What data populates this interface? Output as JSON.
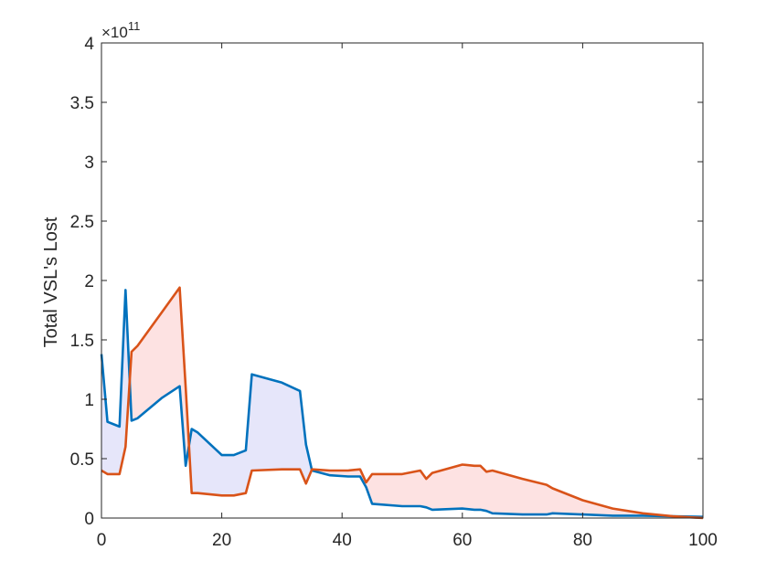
{
  "chart_data": {
    "type": "line",
    "title": "",
    "xlabel": "",
    "ylabel": "Total VSL's Lost",
    "y_exponent_base": "×10",
    "y_exponent_power": "11",
    "xlim": [
      0,
      100
    ],
    "ylim": [
      0,
      4
    ],
    "xticks": [
      0,
      20,
      40,
      60,
      80,
      100
    ],
    "xtick_labels": [
      "0",
      "20",
      "40",
      "60",
      "80",
      "100"
    ],
    "yticks": [
      0,
      0.5,
      1,
      1.5,
      2,
      2.5,
      3,
      3.5,
      4
    ],
    "ytick_labels": [
      "0",
      "0.5",
      "1",
      "1.5",
      "2",
      "2.5",
      "3",
      "3.5",
      "4"
    ],
    "grid": false,
    "fill_between": true,
    "fill_colors": {
      "series1_above": "#e6e6fa",
      "series2_above": "#fde2e2"
    },
    "x": [
      0,
      1,
      3,
      4,
      5,
      6,
      10,
      13,
      14,
      15,
      16,
      20,
      22,
      24,
      25,
      30,
      33,
      34,
      35,
      38,
      41,
      43,
      44,
      45,
      50,
      53,
      54,
      55,
      60,
      62,
      63,
      64,
      65,
      70,
      74,
      75,
      80,
      85,
      90,
      95,
      100
    ],
    "series": [
      {
        "color": "#0072bd",
        "values": [
          1.38,
          0.81,
          0.77,
          1.92,
          0.82,
          0.84,
          1.01,
          1.11,
          0.44,
          0.75,
          0.72,
          0.53,
          0.53,
          0.57,
          1.21,
          1.14,
          1.07,
          0.62,
          0.4,
          0.36,
          0.35,
          0.35,
          0.26,
          0.12,
          0.1,
          0.1,
          0.09,
          0.07,
          0.08,
          0.07,
          0.07,
          0.06,
          0.04,
          0.03,
          0.03,
          0.04,
          0.03,
          0.02,
          0.02,
          0.015,
          0.01
        ]
      },
      {
        "color": "#d95319",
        "values": [
          0.4,
          0.37,
          0.37,
          0.6,
          1.4,
          1.45,
          1.73,
          1.94,
          1.1,
          0.21,
          0.21,
          0.19,
          0.19,
          0.21,
          0.4,
          0.41,
          0.41,
          0.29,
          0.41,
          0.4,
          0.4,
          0.41,
          0.3,
          0.37,
          0.37,
          0.4,
          0.33,
          0.38,
          0.45,
          0.44,
          0.44,
          0.39,
          0.4,
          0.33,
          0.28,
          0.25,
          0.15,
          0.08,
          0.04,
          0.015,
          0.0
        ]
      }
    ]
  }
}
